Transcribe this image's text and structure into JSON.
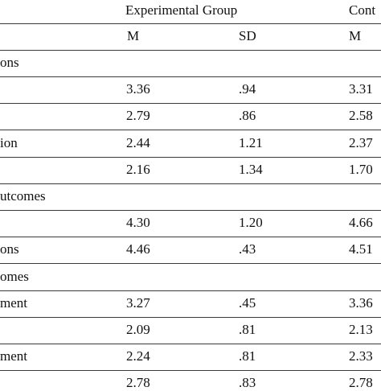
{
  "header": {
    "group1": "Experimental Group",
    "group2": "Cont",
    "m1": "M",
    "sd1": "SD",
    "m2": "M"
  },
  "rows": [
    {
      "label": "ons",
      "type": "section"
    },
    {
      "label": "",
      "m1": "3.36",
      "sd1": ".94",
      "m2": "3.31"
    },
    {
      "label": "",
      "m1": "2.79",
      "sd1": ".86",
      "m2": "2.58"
    },
    {
      "label": "ion",
      "m1": "2.44",
      "sd1": "1.21",
      "m2": "2.37"
    },
    {
      "label": "",
      "m1": "2.16",
      "sd1": "1.34",
      "m2": "1.70"
    },
    {
      "label": "utcomes",
      "type": "section"
    },
    {
      "label": "",
      "m1": "4.30",
      "sd1": "1.20",
      "m2": "4.66"
    },
    {
      "label": "ons",
      "m1": "4.46",
      "sd1": ".43",
      "m2": "4.51"
    },
    {
      "label": "omes",
      "type": "section"
    },
    {
      "label": "ment",
      "m1": "3.27",
      "sd1": ".45",
      "m2": "3.36"
    },
    {
      "label": "",
      "m1": "2.09",
      "sd1": ".81",
      "m2": "2.13"
    },
    {
      "label": "ment",
      "m1": "2.24",
      "sd1": ".81",
      "m2": "2.33"
    },
    {
      "label": "",
      "m1": "2.78",
      "sd1": ".83",
      "m2": "2.78"
    }
  ]
}
